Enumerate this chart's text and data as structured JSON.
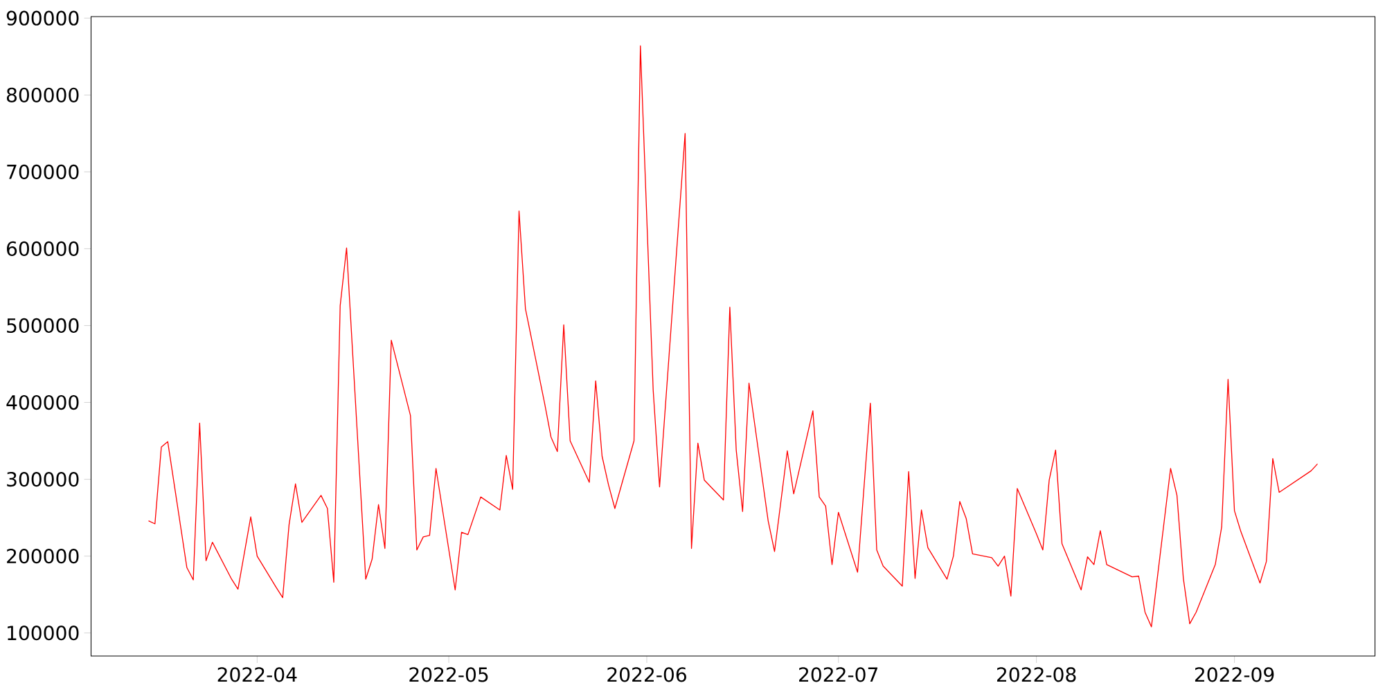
{
  "chart_data": {
    "type": "line",
    "color": "#ff0000",
    "x": [
      "2022-03-15",
      "2022-03-16",
      "2022-03-17",
      "2022-03-18",
      "2022-03-21",
      "2022-03-22",
      "2022-03-23",
      "2022-03-24",
      "2022-03-25",
      "2022-03-28",
      "2022-03-29",
      "2022-03-31",
      "2022-04-01",
      "2022-04-04",
      "2022-04-05",
      "2022-04-06",
      "2022-04-07",
      "2022-04-08",
      "2022-04-11",
      "2022-04-12",
      "2022-04-13",
      "2022-04-14",
      "2022-04-15",
      "2022-04-18",
      "2022-04-19",
      "2022-04-20",
      "2022-04-21",
      "2022-04-22",
      "2022-04-25",
      "2022-04-26",
      "2022-04-27",
      "2022-04-28",
      "2022-04-29",
      "2022-05-02",
      "2022-05-03",
      "2022-05-04",
      "2022-05-06",
      "2022-05-09",
      "2022-05-10",
      "2022-05-11",
      "2022-05-12",
      "2022-05-13",
      "2022-05-16",
      "2022-05-17",
      "2022-05-18",
      "2022-05-19",
      "2022-05-20",
      "2022-05-23",
      "2022-05-24",
      "2022-05-25",
      "2022-05-26",
      "2022-05-27",
      "2022-05-30",
      "2022-05-31",
      "2022-06-02",
      "2022-06-03",
      "2022-06-07",
      "2022-06-08",
      "2022-06-09",
      "2022-06-10",
      "2022-06-13",
      "2022-06-14",
      "2022-06-15",
      "2022-06-16",
      "2022-06-17",
      "2022-06-20",
      "2022-06-21",
      "2022-06-23",
      "2022-06-24",
      "2022-06-27",
      "2022-06-28",
      "2022-06-29",
      "2022-06-30",
      "2022-07-01",
      "2022-07-04",
      "2022-07-06",
      "2022-07-07",
      "2022-07-08",
      "2022-07-11",
      "2022-07-12",
      "2022-07-13",
      "2022-07-14",
      "2022-07-15",
      "2022-07-18",
      "2022-07-19",
      "2022-07-20",
      "2022-07-21",
      "2022-07-22",
      "2022-07-25",
      "2022-07-26",
      "2022-07-27",
      "2022-07-28",
      "2022-07-29",
      "2022-08-01",
      "2022-08-02",
      "2022-08-03",
      "2022-08-04",
      "2022-08-05",
      "2022-08-08",
      "2022-08-09",
      "2022-08-10",
      "2022-08-11",
      "2022-08-12",
      "2022-08-16",
      "2022-08-17",
      "2022-08-18",
      "2022-08-19",
      "2022-08-22",
      "2022-08-23",
      "2022-08-24",
      "2022-08-25",
      "2022-08-26",
      "2022-08-29",
      "2022-08-30",
      "2022-08-31",
      "2022-09-01",
      "2022-09-02",
      "2022-09-05",
      "2022-09-06",
      "2022-09-07",
      "2022-09-08",
      "2022-09-13",
      "2022-09-14"
    ],
    "values": [
      246000,
      242000,
      342000,
      349000,
      185000,
      169000,
      373000,
      194000,
      218000,
      170000,
      157000,
      251000,
      200000,
      159000,
      146000,
      241000,
      294000,
      244000,
      279000,
      262000,
      166000,
      526000,
      601000,
      170000,
      196000,
      267000,
      210000,
      481000,
      383000,
      208000,
      225000,
      227000,
      314000,
      156000,
      231000,
      228000,
      277000,
      260000,
      331000,
      287000,
      649000,
      522000,
      399000,
      355000,
      336000,
      501000,
      350000,
      296000,
      428000,
      330000,
      293000,
      262000,
      350000,
      864000,
      416000,
      290000,
      750000,
      210000,
      347000,
      299000,
      273000,
      524000,
      338000,
      258000,
      425000,
      246000,
      206000,
      337000,
      281000,
      389000,
      277000,
      265000,
      189000,
      257000,
      179000,
      399000,
      208000,
      187000,
      161000,
      310000,
      171000,
      260000,
      211000,
      170000,
      200000,
      271000,
      249000,
      203000,
      198000,
      187000,
      200000,
      148000,
      288000,
      229000,
      208000,
      299000,
      338000,
      216000,
      156000,
      199000,
      189000,
      233000,
      189000,
      173000,
      174000,
      127000,
      108000,
      314000,
      279000,
      171000,
      112000,
      127000,
      189000,
      238000,
      430000,
      259000,
      232000,
      165000,
      193000,
      327000,
      283000,
      311000,
      320000
    ],
    "xlim": [
      "2022-03-06",
      "2022-09-23"
    ],
    "ylim": [
      70000,
      902000
    ],
    "xticks": [
      {
        "value": "2022-04-01",
        "label": "2022-04"
      },
      {
        "value": "2022-05-01",
        "label": "2022-05"
      },
      {
        "value": "2022-06-01",
        "label": "2022-06"
      },
      {
        "value": "2022-07-01",
        "label": "2022-07"
      },
      {
        "value": "2022-08-01",
        "label": "2022-08"
      },
      {
        "value": "2022-09-01",
        "label": "2022-09"
      }
    ],
    "yticks": [
      100000,
      200000,
      300000,
      400000,
      500000,
      600000,
      700000,
      800000,
      900000
    ]
  }
}
